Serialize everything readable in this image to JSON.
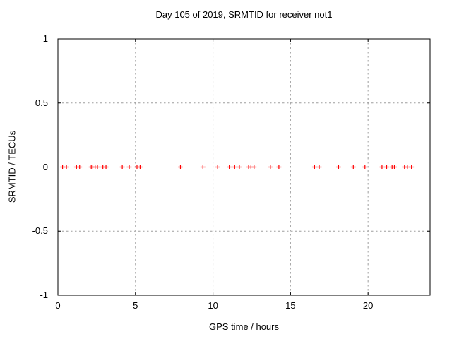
{
  "chart_data": {
    "type": "scatter",
    "title": "Day 105 of 2019, SRMTID for receiver not1",
    "xlabel": "GPS time / hours",
    "ylabel": "SRMTID / TECUs",
    "xlim": [
      0,
      24
    ],
    "ylim": [
      -1,
      1
    ],
    "xticks": [
      {
        "value": 0,
        "label": "0"
      },
      {
        "value": 5,
        "label": "5"
      },
      {
        "value": 10,
        "label": "10"
      },
      {
        "value": 15,
        "label": "15"
      },
      {
        "value": 20,
        "label": "20"
      }
    ],
    "yticks": [
      {
        "value": -1,
        "label": "-1"
      },
      {
        "value": -0.5,
        "label": "-0.5"
      },
      {
        "value": 0,
        "label": "0"
      },
      {
        "value": 0.5,
        "label": "0.5"
      },
      {
        "value": 1,
        "label": "1"
      }
    ],
    "grid": true,
    "legend": "none",
    "marker": "plus",
    "marker_color": "#ff0000",
    "grid_color": "#9e9e9e",
    "axis_color": "#000000",
    "series": [
      {
        "name": "SRMTID",
        "points": [
          [
            0.3,
            0
          ],
          [
            0.55,
            0
          ],
          [
            1.2,
            0
          ],
          [
            1.4,
            0
          ],
          [
            2.15,
            0
          ],
          [
            2.25,
            0
          ],
          [
            2.4,
            0
          ],
          [
            2.55,
            0
          ],
          [
            2.9,
            0
          ],
          [
            3.1,
            0
          ],
          [
            4.15,
            0
          ],
          [
            4.6,
            0
          ],
          [
            5.1,
            0
          ],
          [
            5.3,
            0
          ],
          [
            7.9,
            0
          ],
          [
            9.35,
            0
          ],
          [
            10.3,
            0
          ],
          [
            11.05,
            0
          ],
          [
            11.4,
            0
          ],
          [
            11.7,
            0
          ],
          [
            12.3,
            0
          ],
          [
            12.45,
            0
          ],
          [
            12.65,
            0
          ],
          [
            13.7,
            0
          ],
          [
            14.25,
            0
          ],
          [
            16.55,
            0
          ],
          [
            16.85,
            0
          ],
          [
            18.1,
            0
          ],
          [
            19.05,
            0
          ],
          [
            19.8,
            0
          ],
          [
            20.9,
            0
          ],
          [
            21.2,
            0
          ],
          [
            21.55,
            0
          ],
          [
            21.7,
            0
          ],
          [
            22.35,
            0
          ],
          [
            22.55,
            0
          ],
          [
            22.8,
            0
          ]
        ]
      }
    ]
  }
}
